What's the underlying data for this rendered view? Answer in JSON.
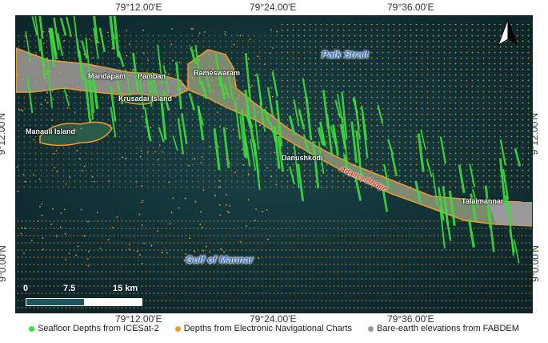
{
  "axes": {
    "top_ticks": [
      "79°12.00'E",
      "79°24.00'E",
      "79°36.00'E"
    ],
    "bottom_ticks": [
      "79°12.00'E",
      "79°24.00'E",
      "79°36.00'E"
    ],
    "left_ticks": [
      "9°12.00'N",
      "9°0.00'N"
    ],
    "right_ticks": [
      "9°12.00'N",
      "9°0.00'N"
    ]
  },
  "places": {
    "mandapam": "Mandapam",
    "pamban": "Pamban",
    "rameswaram": "Rameswaram",
    "krusadai": "Krusadai Island",
    "manauli": "Manauli Island",
    "danushkodi": "Danushkodi",
    "talaimannar": "Talaimannar"
  },
  "water_labels": {
    "palk": "Palk Strait",
    "gulf": "Gulf of Mannar"
  },
  "bridge_label": "Adam's Bridge",
  "scale_bar": {
    "labels": [
      "0",
      "7.5",
      "15 km"
    ]
  },
  "north_arrow": "north-arrow-icon",
  "colors": {
    "icesat": "#3ddc3d",
    "enc": "#f39a2a",
    "fabdem": "#9a9a9a",
    "water": "#0f2e33",
    "coast": "#f39a2a"
  },
  "legend": [
    {
      "label": "Seafloor Depths from ICESat-2",
      "color": "#3ddc3d"
    },
    {
      "label": "Depths from Electronic Navigational Charts",
      "color": "#f39a2a"
    },
    {
      "label": "Bare-earth elevations from FABDEM",
      "color": "#9a9a9a"
    }
  ]
}
